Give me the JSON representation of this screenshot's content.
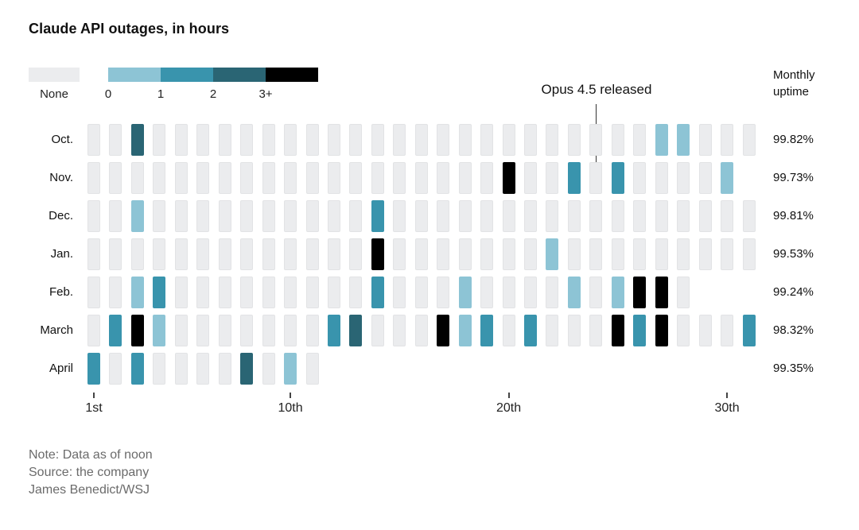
{
  "title": "Claude API outages, in hours",
  "legend": {
    "none_label": "None",
    "thresholds": [
      "0",
      "1",
      "2",
      "3+"
    ],
    "colors": {
      "none": "#ebecee",
      "0": "#8dc4d5",
      "1": "#3994ad",
      "2": "#2a6574",
      "3+": "#000000"
    }
  },
  "uptime_header": {
    "line1": "Monthly",
    "line2": "uptime"
  },
  "annotation": {
    "text": "Opus 4.5 released",
    "month": "Nov.",
    "day": 24
  },
  "x_axis": {
    "ticks": [
      {
        "day": 1,
        "label": "1st"
      },
      {
        "day": 10,
        "label": "10th"
      },
      {
        "day": 20,
        "label": "20th"
      },
      {
        "day": 30,
        "label": "30th"
      }
    ]
  },
  "footer": {
    "note": "Note: Data as of noon",
    "source": "Source: the company",
    "byline": "James Benedict/WSJ"
  },
  "chart_data": {
    "type": "heatmap",
    "unit": "outage hours per day",
    "legend_levels": [
      "none",
      "0",
      "1",
      "2",
      "3+"
    ],
    "rows": [
      {
        "month": "Oct.",
        "days_shown": 31,
        "uptime": "99.82%",
        "outages": {
          "3": "2",
          "27": "0",
          "28": "0"
        }
      },
      {
        "month": "Nov.",
        "days_shown": 30,
        "uptime": "99.73%",
        "outages": {
          "20": "3+",
          "23": "1",
          "25": "1",
          "30": "0"
        }
      },
      {
        "month": "Dec.",
        "days_shown": 31,
        "uptime": "99.81%",
        "outages": {
          "3": "0",
          "14": "1"
        }
      },
      {
        "month": "Jan.",
        "days_shown": 31,
        "uptime": "99.53%",
        "outages": {
          "14": "3+",
          "22": "0"
        }
      },
      {
        "month": "Feb.",
        "days_shown": 28,
        "uptime": "99.24%",
        "outages": {
          "3": "0",
          "4": "1",
          "14": "1",
          "18": "0",
          "23": "0",
          "25": "0",
          "26": "3+",
          "27": "3+"
        }
      },
      {
        "month": "March",
        "days_shown": 31,
        "uptime": "98.32%",
        "outages": {
          "2": "1",
          "3": "3+",
          "4": "0",
          "12": "1",
          "13": "2",
          "17": "3+",
          "18": "0",
          "19": "1",
          "21": "1",
          "25": "3+",
          "26": "1",
          "27": "3+",
          "31": "1"
        }
      },
      {
        "month": "April",
        "days_shown": 11,
        "uptime": "99.35%",
        "outages": {
          "1": "1",
          "3": "1",
          "8": "2",
          "10": "0"
        }
      }
    ]
  }
}
